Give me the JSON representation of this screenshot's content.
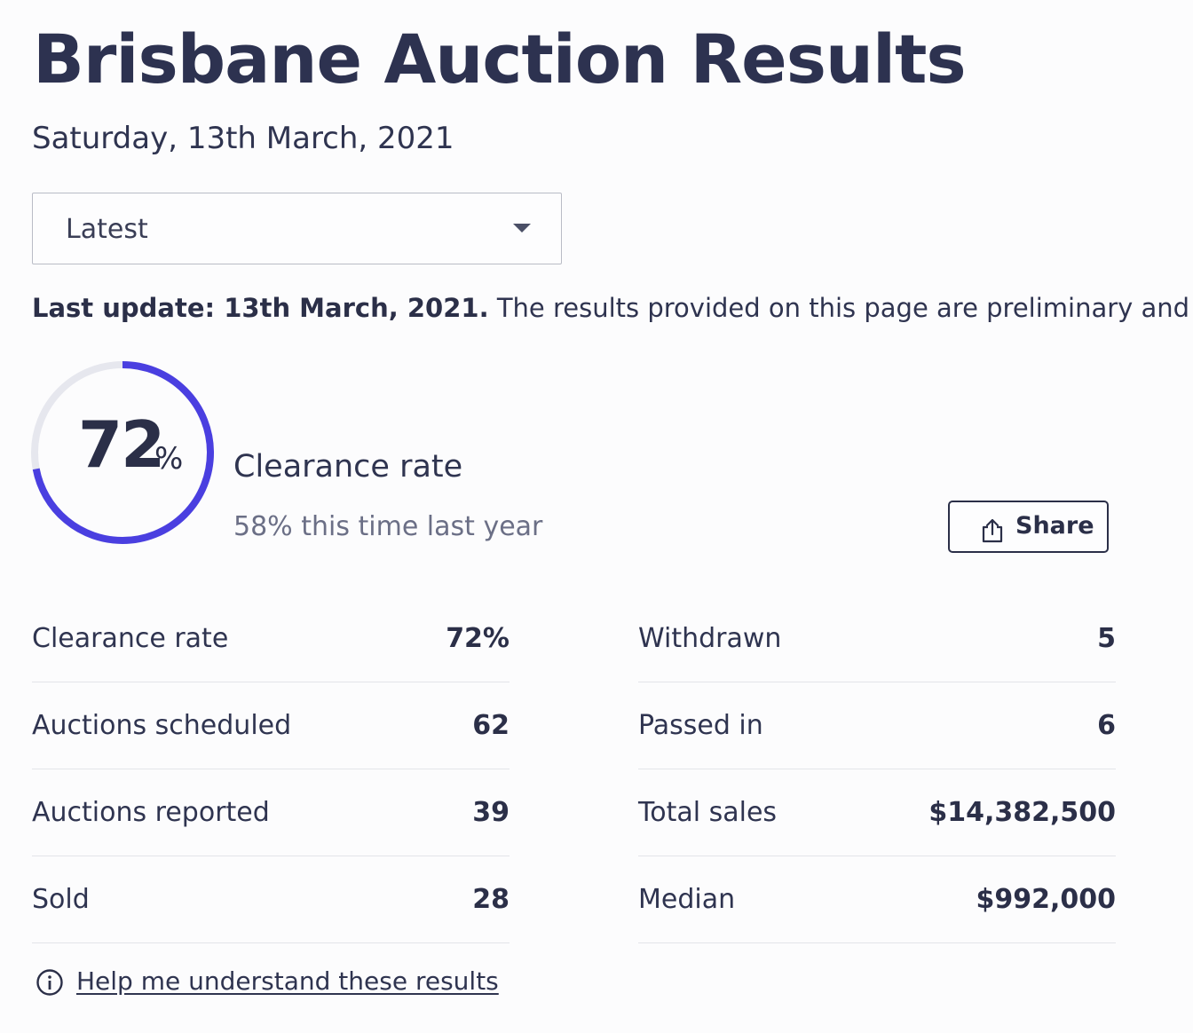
{
  "page": {
    "title": "Brisbane Auction Results",
    "date": "Saturday, 13th March, 2021"
  },
  "filter": {
    "selected": "Latest"
  },
  "update": {
    "label": "Last update: 13th March, 2021.",
    "text": " The results provided on this page are preliminary and curren"
  },
  "clearance": {
    "value": "72",
    "unit": "%",
    "fraction": 0.72,
    "label": "Clearance rate",
    "last_year": "58% this time last year",
    "ring_color": "#4a3fe0",
    "track_color": "#e6e7ee"
  },
  "share": {
    "label": "Share",
    "icon": "share-icon"
  },
  "stats_left": [
    {
      "label": "Clearance rate",
      "value": "72%"
    },
    {
      "label": "Auctions scheduled",
      "value": "62"
    },
    {
      "label": "Auctions reported",
      "value": "39"
    },
    {
      "label": "Sold",
      "value": "28"
    }
  ],
  "stats_right": [
    {
      "label": "Withdrawn",
      "value": "5"
    },
    {
      "label": "Passed in",
      "value": "6"
    },
    {
      "label": "Total sales",
      "value": "$14,382,500"
    },
    {
      "label": "Median",
      "value": "$992,000"
    }
  ],
  "help": {
    "label": "Help me understand these results",
    "icon": "info-icon"
  }
}
